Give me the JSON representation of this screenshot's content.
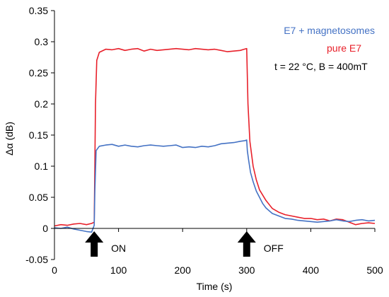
{
  "chart_data": {
    "type": "line",
    "xlabel": "Time (s)",
    "ylabel": "Δα (dB)",
    "xlim": [
      0,
      500
    ],
    "ylim": [
      -0.05,
      0.35
    ],
    "x_ticks": [
      0,
      100,
      200,
      300,
      400,
      500
    ],
    "y_ticks": [
      -0.05,
      0,
      0.05,
      0.1,
      0.15,
      0.2,
      0.25,
      0.3,
      0.35
    ],
    "x_tick_labels": [
      "0",
      "100",
      "200",
      "300",
      "400",
      "500"
    ],
    "y_tick_labels": [
      "-0.05",
      "0",
      "0.05",
      "0.1",
      "0.15",
      "0.2",
      "0.25",
      "0.3",
      "0.35"
    ],
    "grid": false,
    "legend": {
      "position": "top-right",
      "entries": [
        {
          "name": "E7 + magnetosomes",
          "color": "#4472c4"
        },
        {
          "name": "pure E7",
          "color": "#e8202a"
        }
      ]
    },
    "annotations": {
      "conditions": "t = 22 °C, B = 400mT",
      "on_label": "ON",
      "on_x": 62,
      "off_label": "OFF",
      "off_x": 300
    },
    "series": [
      {
        "name": "E7 + magnetosomes",
        "color": "#4472c4",
        "x": [
          0,
          10,
          20,
          30,
          40,
          50,
          58,
          62,
          63,
          65,
          70,
          80,
          90,
          100,
          110,
          120,
          130,
          140,
          150,
          160,
          170,
          180,
          190,
          200,
          210,
          220,
          230,
          240,
          250,
          260,
          270,
          280,
          290,
          297,
          300,
          301,
          303,
          306,
          310,
          315,
          320,
          325,
          330,
          340,
          350,
          360,
          370,
          380,
          390,
          400,
          410,
          420,
          430,
          440,
          450,
          460,
          470,
          480,
          490,
          500
        ],
        "y": [
          0.001,
          0.0,
          0.002,
          -0.001,
          -0.003,
          -0.005,
          -0.006,
          0.005,
          0.06,
          0.125,
          0.132,
          0.134,
          0.135,
          0.132,
          0.134,
          0.132,
          0.131,
          0.133,
          0.134,
          0.133,
          0.132,
          0.133,
          0.134,
          0.13,
          0.131,
          0.13,
          0.132,
          0.131,
          0.133,
          0.136,
          0.137,
          0.138,
          0.14,
          0.141,
          0.142,
          0.125,
          0.11,
          0.09,
          0.075,
          0.06,
          0.05,
          0.04,
          0.033,
          0.024,
          0.02,
          0.016,
          0.015,
          0.013,
          0.012,
          0.011,
          0.01,
          0.011,
          0.012,
          0.014,
          0.012,
          0.011,
          0.013,
          0.014,
          0.012,
          0.013
        ]
      },
      {
        "name": "pure E7",
        "color": "#e8202a",
        "x": [
          0,
          10,
          20,
          30,
          40,
          50,
          58,
          62,
          63,
          64,
          66,
          70,
          80,
          90,
          100,
          110,
          120,
          130,
          140,
          150,
          160,
          170,
          180,
          190,
          200,
          210,
          220,
          230,
          240,
          250,
          260,
          270,
          280,
          290,
          296,
          300,
          302,
          305,
          310,
          315,
          320,
          330,
          340,
          350,
          360,
          370,
          380,
          390,
          400,
          410,
          420,
          430,
          440,
          450,
          460,
          470,
          480,
          490,
          500
        ],
        "y": [
          0.004,
          0.006,
          0.005,
          0.007,
          0.008,
          0.006,
          0.008,
          0.01,
          0.1,
          0.2,
          0.27,
          0.283,
          0.288,
          0.287,
          0.289,
          0.286,
          0.288,
          0.289,
          0.285,
          0.288,
          0.286,
          0.287,
          0.288,
          0.289,
          0.288,
          0.287,
          0.289,
          0.288,
          0.287,
          0.288,
          0.286,
          0.284,
          0.285,
          0.286,
          0.288,
          0.289,
          0.2,
          0.14,
          0.1,
          0.078,
          0.062,
          0.045,
          0.032,
          0.026,
          0.022,
          0.02,
          0.018,
          0.016,
          0.016,
          0.014,
          0.015,
          0.012,
          0.015,
          0.014,
          0.01,
          0.006,
          0.008,
          0.009,
          0.008
        ]
      }
    ]
  }
}
